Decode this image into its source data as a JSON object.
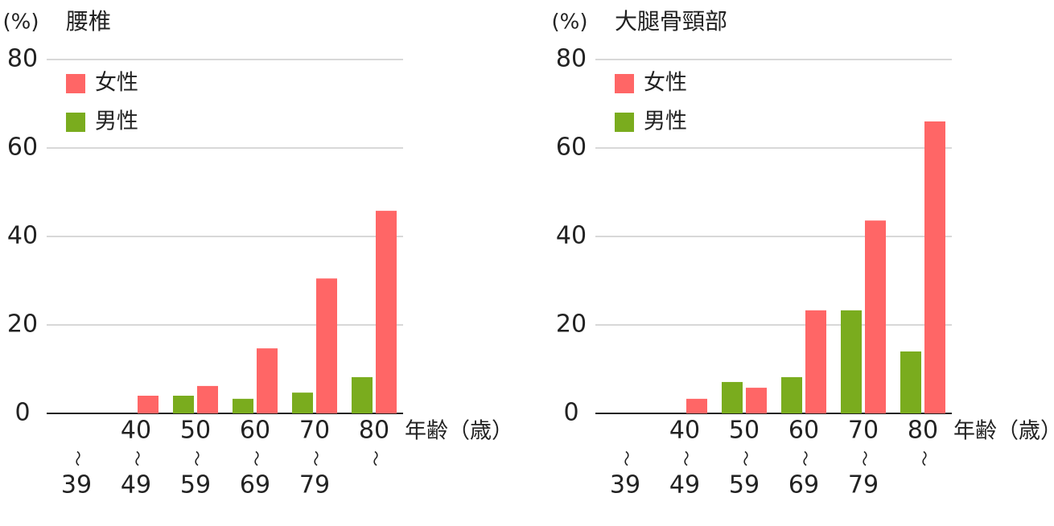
{
  "chart_data": [
    {
      "type": "bar",
      "title": "腰椎",
      "y_label": "(%)",
      "x_label": "年齢（歳）",
      "categories": [
        [
          "〜",
          "39"
        ],
        [
          "40",
          "〜",
          "49"
        ],
        [
          "50",
          "〜",
          "59"
        ],
        [
          "60",
          "〜",
          "69"
        ],
        [
          "70",
          "〜",
          "79"
        ],
        [
          "80",
          "〜"
        ]
      ],
      "series": [
        {
          "name": "女性",
          "color": "#ff6666",
          "values": [
            null,
            4.0,
            6.2,
            14.7,
            30.5,
            45.8
          ]
        },
        {
          "name": "男性",
          "color": "#7aac1e",
          "values": [
            null,
            null,
            4.0,
            3.3,
            4.7,
            8.2
          ]
        }
      ],
      "ylim": [
        0,
        80
      ],
      "yticks": [
        0,
        20,
        40,
        60,
        80
      ],
      "grid": true
    },
    {
      "type": "bar",
      "title": "大腿骨頸部",
      "y_label": "(%)",
      "x_label": "年齢（歳）",
      "categories": [
        [
          "〜",
          "39"
        ],
        [
          "40",
          "〜",
          "49"
        ],
        [
          "50",
          "〜",
          "59"
        ],
        [
          "60",
          "〜",
          "69"
        ],
        [
          "70",
          "〜",
          "79"
        ],
        [
          "80",
          "〜"
        ]
      ],
      "series": [
        {
          "name": "女性",
          "color": "#ff6666",
          "values": [
            null,
            3.3,
            5.8,
            23.3,
            43.6,
            66.0
          ]
        },
        {
          "name": "男性",
          "color": "#7aac1e",
          "values": [
            null,
            null,
            7.1,
            8.2,
            23.3,
            14.0
          ]
        }
      ],
      "ylim": [
        0,
        80
      ],
      "yticks": [
        0,
        20,
        40,
        60,
        80
      ],
      "grid": true
    }
  ]
}
